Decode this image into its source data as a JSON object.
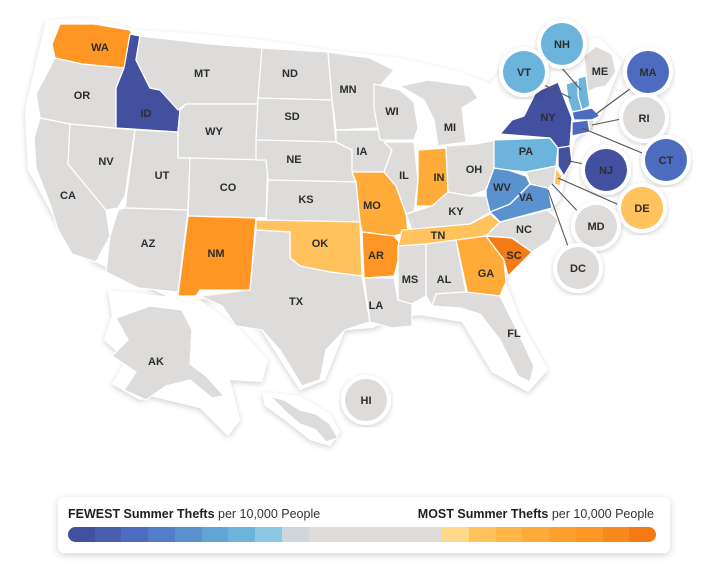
{
  "colors": {
    "background": "#ffffff",
    "land_border": "#e8e8e8",
    "neutral": "#dedcda",
    "fewest_1": "#4350a0",
    "fewest_2": "#4d6cc0",
    "fewest_3": "#5a92cf",
    "fewest_4": "#6cb4dc",
    "most_1": "#ffc25c",
    "most_2": "#ffab3a",
    "most_3": "#ff9624",
    "most_4": "#f47a14"
  },
  "states": [
    {
      "code": "WA",
      "label": "WA",
      "category": "most_3"
    },
    {
      "code": "OR",
      "label": "OR",
      "category": "neutral"
    },
    {
      "code": "CA",
      "label": "CA",
      "category": "neutral"
    },
    {
      "code": "ID",
      "label": "ID",
      "category": "fewest_1"
    },
    {
      "code": "NV",
      "label": "NV",
      "category": "neutral"
    },
    {
      "code": "MT",
      "label": "MT",
      "category": "neutral"
    },
    {
      "code": "WY",
      "label": "WY",
      "category": "neutral"
    },
    {
      "code": "UT",
      "label": "UT",
      "category": "neutral"
    },
    {
      "code": "AZ",
      "label": "AZ",
      "category": "neutral"
    },
    {
      "code": "CO",
      "label": "CO",
      "category": "neutral"
    },
    {
      "code": "NM",
      "label": "NM",
      "category": "most_3"
    },
    {
      "code": "ND",
      "label": "ND",
      "category": "neutral"
    },
    {
      "code": "SD",
      "label": "SD",
      "category": "neutral"
    },
    {
      "code": "NE",
      "label": "NE",
      "category": "neutral"
    },
    {
      "code": "KS",
      "label": "KS",
      "category": "neutral"
    },
    {
      "code": "OK",
      "label": "OK",
      "category": "most_1"
    },
    {
      "code": "TX",
      "label": "TX",
      "category": "neutral"
    },
    {
      "code": "MN",
      "label": "MN",
      "category": "neutral"
    },
    {
      "code": "IA",
      "label": "IA",
      "category": "neutral"
    },
    {
      "code": "MO",
      "label": "MO",
      "category": "most_2"
    },
    {
      "code": "AR",
      "label": "AR",
      "category": "most_3"
    },
    {
      "code": "LA",
      "label": "LA",
      "category": "neutral"
    },
    {
      "code": "WI",
      "label": "WI",
      "category": "neutral"
    },
    {
      "code": "IL",
      "label": "IL",
      "category": "neutral"
    },
    {
      "code": "MI",
      "label": "MI",
      "category": "neutral"
    },
    {
      "code": "IN",
      "label": "IN",
      "category": "most_2"
    },
    {
      "code": "OH",
      "label": "OH",
      "category": "neutral"
    },
    {
      "code": "KY",
      "label": "KY",
      "category": "neutral"
    },
    {
      "code": "TN",
      "label": "TN",
      "category": "most_1"
    },
    {
      "code": "MS",
      "label": "MS",
      "category": "neutral"
    },
    {
      "code": "AL",
      "label": "AL",
      "category": "neutral"
    },
    {
      "code": "GA",
      "label": "GA",
      "category": "most_2"
    },
    {
      "code": "FL",
      "label": "FL",
      "category": "neutral"
    },
    {
      "code": "SC",
      "label": "SC",
      "category": "most_4"
    },
    {
      "code": "NC",
      "label": "NC",
      "category": "neutral"
    },
    {
      "code": "VA",
      "label": "VA",
      "category": "fewest_3"
    },
    {
      "code": "WV",
      "label": "WV",
      "category": "fewest_3"
    },
    {
      "code": "PA",
      "label": "PA",
      "category": "fewest_4"
    },
    {
      "code": "NY",
      "label": "NY",
      "category": "fewest_1"
    },
    {
      "code": "ME",
      "label": "ME",
      "category": "neutral"
    },
    {
      "code": "AK",
      "label": "AK",
      "category": "neutral"
    }
  ],
  "callouts": [
    {
      "code": "NH",
      "label": "NH",
      "category": "fewest_4"
    },
    {
      "code": "VT",
      "label": "VT",
      "category": "fewest_4"
    },
    {
      "code": "MA",
      "label": "MA",
      "category": "fewest_2"
    },
    {
      "code": "RI",
      "label": "RI",
      "category": "neutral"
    },
    {
      "code": "CT",
      "label": "CT",
      "category": "fewest_2"
    },
    {
      "code": "NJ",
      "label": "NJ",
      "category": "fewest_1"
    },
    {
      "code": "DE",
      "label": "DE",
      "category": "most_1"
    },
    {
      "code": "MD",
      "label": "MD",
      "category": "neutral"
    },
    {
      "code": "DC",
      "label": "DC",
      "category": "neutral"
    },
    {
      "code": "HI",
      "label": "HI",
      "category": "neutral"
    }
  ],
  "legend": {
    "left_bold": "FEWEST Summer Thefts",
    "left_rest": " per 10,000 People",
    "right_bold": "MOST Summer Thefts",
    "right_rest": " per 10,000 People",
    "gradient": [
      "#4350a0",
      "#4a5eb0",
      "#4d6cc0",
      "#537dc8",
      "#5a92cf",
      "#62a4d6",
      "#6cb4dc",
      "#8cc8e4",
      "#cfd6da",
      "#dedcda",
      "#dedcda",
      "#dedcda",
      "#dedcda",
      "#dedcda",
      "#ffd98a",
      "#ffc25c",
      "#ffb548",
      "#ffab3a",
      "#ff9f2c",
      "#ff9624",
      "#f88a1c",
      "#f47a14"
    ]
  }
}
